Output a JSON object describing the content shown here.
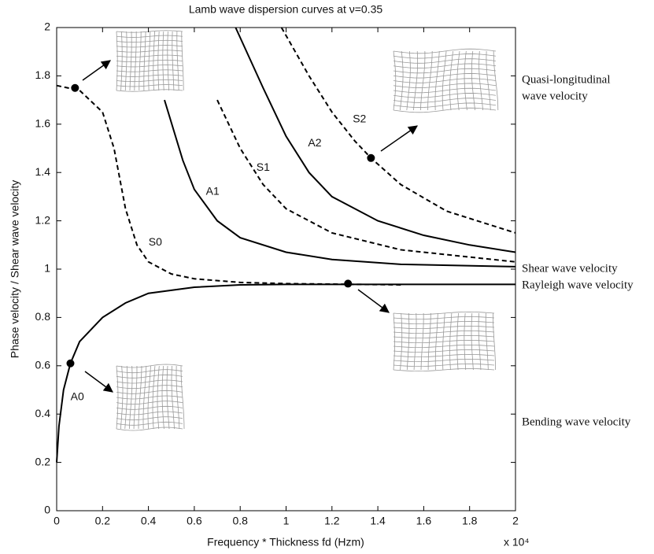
{
  "chart_data": {
    "type": "line",
    "title": "Lamb wave dispersion curves at ν=0.35",
    "x_label": "Frequency * Thickness fd (Hzm)",
    "x_multiplier": "x 10⁴",
    "y_label": "Phase velocity / Shear wave velocity",
    "xlim": [
      0,
      2
    ],
    "ylim": [
      0,
      2
    ],
    "xticks": [
      0,
      0.2,
      0.4,
      0.6,
      0.8,
      1,
      1.2,
      1.4,
      1.6,
      1.8,
      2
    ],
    "yticks": [
      0,
      0.2,
      0.4,
      0.6,
      0.8,
      1,
      1.2,
      1.4,
      1.6,
      1.8,
      2
    ],
    "series": [
      {
        "name": "S0",
        "color": "#000000",
        "style": "dashed",
        "x": [
          0,
          0.1,
          0.2,
          0.25,
          0.3,
          0.35,
          0.4,
          0.5,
          0.6,
          0.8,
          1.0,
          1.5
        ],
        "values": [
          1.76,
          1.74,
          1.65,
          1.5,
          1.25,
          1.1,
          1.03,
          0.98,
          0.96,
          0.945,
          0.94,
          0.935
        ]
      },
      {
        "name": "A0",
        "color": "#000000",
        "style": "solid",
        "x": [
          0,
          0.01,
          0.03,
          0.06,
          0.1,
          0.2,
          0.3,
          0.4,
          0.6,
          0.8,
          1.0,
          2.0
        ],
        "values": [
          0.2,
          0.35,
          0.5,
          0.61,
          0.7,
          0.8,
          0.86,
          0.9,
          0.925,
          0.935,
          0.937,
          0.937
        ]
      },
      {
        "name": "A1",
        "color": "#000000",
        "style": "solid",
        "x": [
          0.47,
          0.55,
          0.6,
          0.7,
          0.8,
          1.0,
          1.2,
          1.5,
          2.0
        ],
        "values": [
          1.7,
          1.45,
          1.33,
          1.2,
          1.13,
          1.07,
          1.04,
          1.02,
          1.01
        ]
      },
      {
        "name": "S1",
        "color": "#000000",
        "style": "dashed",
        "x": [
          0.7,
          0.8,
          0.9,
          1.0,
          1.2,
          1.5,
          2.0
        ],
        "values": [
          1.7,
          1.5,
          1.35,
          1.25,
          1.15,
          1.08,
          1.03
        ]
      },
      {
        "name": "A2",
        "color": "#000000",
        "style": "solid",
        "x": [
          0.78,
          0.9,
          1.0,
          1.1,
          1.2,
          1.4,
          1.6,
          1.8,
          2.0
        ],
        "values": [
          2.0,
          1.75,
          1.55,
          1.4,
          1.3,
          1.2,
          1.14,
          1.1,
          1.07
        ]
      },
      {
        "name": "S2",
        "color": "#000000",
        "style": "dashed",
        "x": [
          0.98,
          1.1,
          1.2,
          1.3,
          1.37,
          1.5,
          1.7,
          2.0
        ],
        "values": [
          2.0,
          1.8,
          1.65,
          1.53,
          1.46,
          1.35,
          1.24,
          1.15
        ]
      }
    ],
    "markers": {
      "x": [
        0.08,
        0.06,
        1.27,
        1.37
      ],
      "y": [
        1.75,
        0.61,
        0.94,
        1.46
      ]
    },
    "annotations": [
      [
        "Quasi-longitudinal",
        "wave velocity"
      ],
      [
        "Shear wave velocity"
      ],
      [
        "Rayleigh wave velocity"
      ],
      [
        "Bending wave velocity"
      ]
    ]
  }
}
